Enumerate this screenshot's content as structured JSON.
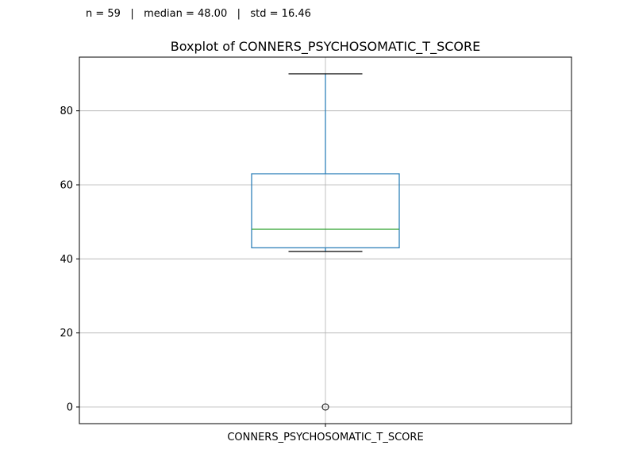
{
  "stats_line": "n = 59   |   median = 48.00   |   std = 16.46",
  "chart_data": {
    "type": "boxplot",
    "title": "Boxplot of CONNERS_PSYCHOSOMATIC_T_SCORE",
    "categories": [
      "CONNERS_PSYCHOSOMATIC_T_SCORE"
    ],
    "boxes": [
      {
        "category": "CONNERS_PSYCHOSOMATIC_T_SCORE",
        "whisker_low": 42,
        "q1": 43,
        "median": 48,
        "q3": 63,
        "whisker_high": 90,
        "outliers": [
          0
        ]
      }
    ],
    "ylim": [
      -4.5,
      94.5
    ],
    "yticks": [
      0,
      20,
      40,
      60,
      80
    ],
    "grid": true,
    "colors": {
      "box": "#1f77b4",
      "median": "#2ca02c",
      "whisker": "#000000",
      "grid": "#b0b0b0"
    }
  }
}
